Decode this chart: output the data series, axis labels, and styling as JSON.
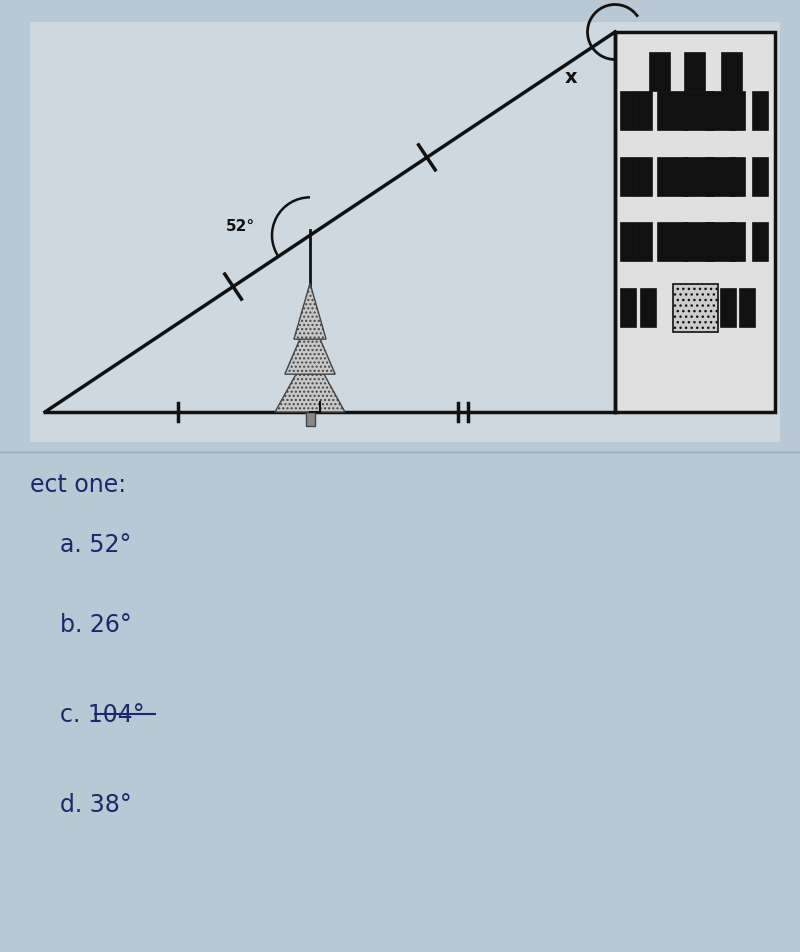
{
  "bg_color": "#b8c8d4",
  "diagram_bg": "#cdd8e0",
  "title_text": "ect one:",
  "choices": [
    "a. 52°",
    "b. 26°",
    "c. 104°",
    "d. 38°"
  ],
  "angle_label": "52°",
  "x_label": "x",
  "building_color": "#e0e0e0",
  "building_border": "#111111",
  "line_color": "#111111",
  "text_color": "#1a2a6a",
  "win_color": "#111111",
  "door_color": "#cccccc",
  "tree_color": "#c8c8c8"
}
